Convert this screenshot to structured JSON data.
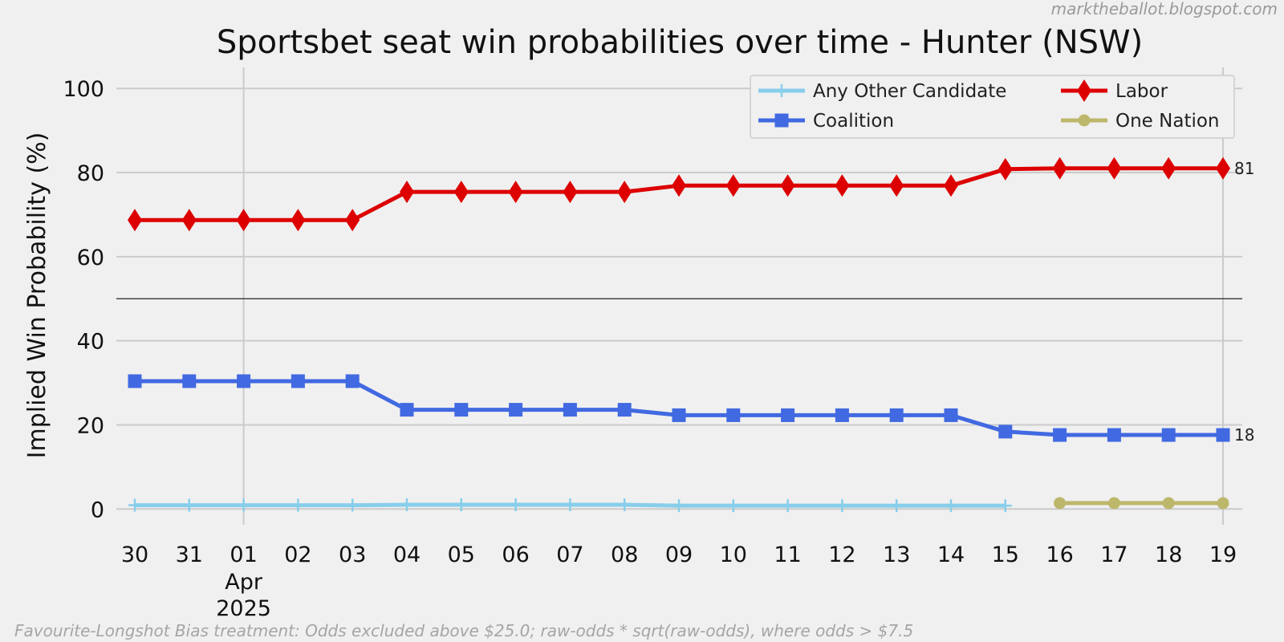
{
  "source_credit": "marktheballot.blogspot.com",
  "footnote": "Favourite-Longshot Bias treatment: Odds excluded above $25.0; raw-odds * sqrt(raw-odds), where odds > $7.5",
  "chart_data": {
    "type": "line",
    "title": "Sportsbet seat win probabilities over time - Hunter (NSW)",
    "ylabel": "Implied Win Probability (%)",
    "xlabel": "",
    "ylim": [
      -3,
      105
    ],
    "yticks": [
      0,
      20,
      40,
      60,
      80,
      100
    ],
    "reference_line": 50,
    "x": [
      "2025-03-30",
      "2025-03-31",
      "2025-04-01",
      "2025-04-02",
      "2025-04-03",
      "2025-04-04",
      "2025-04-05",
      "2025-04-06",
      "2025-04-07",
      "2025-04-08",
      "2025-04-09",
      "2025-04-10",
      "2025-04-11",
      "2025-04-12",
      "2025-04-13",
      "2025-04-14",
      "2025-04-15",
      "2025-04-16",
      "2025-04-17",
      "2025-04-18",
      "2025-04-19"
    ],
    "xtick_labels": [
      "30",
      "31",
      "01",
      "02",
      "03",
      "04",
      "05",
      "06",
      "07",
      "08",
      "09",
      "10",
      "11",
      "12",
      "13",
      "14",
      "15",
      "16",
      "17",
      "18",
      "19"
    ],
    "xtick_sublabel": {
      "index": 2,
      "lines": [
        "Apr",
        "2025"
      ]
    },
    "vgrid_indices": [
      2,
      20
    ],
    "legend_position": "upper right",
    "series": [
      {
        "name": "Any Other Candidate",
        "color": "#87ceeb",
        "marker": "plus",
        "values": [
          0.9,
          0.9,
          0.9,
          0.9,
          0.9,
          1.0,
          1.0,
          1.0,
          1.0,
          1.0,
          0.8,
          0.8,
          0.8,
          0.8,
          0.8,
          0.8,
          0.8,
          null,
          null,
          null,
          null
        ]
      },
      {
        "name": "Coalition",
        "color": "#4169e1",
        "marker": "square",
        "values": [
          30.4,
          30.4,
          30.4,
          30.4,
          30.4,
          23.6,
          23.6,
          23.6,
          23.6,
          23.6,
          22.3,
          22.3,
          22.3,
          22.3,
          22.3,
          22.3,
          18.4,
          17.6,
          17.6,
          17.6,
          17.6
        ]
      },
      {
        "name": "Labor",
        "color": "#dd0000",
        "marker": "diamond",
        "values": [
          68.7,
          68.7,
          68.7,
          68.7,
          68.7,
          75.4,
          75.4,
          75.4,
          75.4,
          75.4,
          76.9,
          76.9,
          76.9,
          76.9,
          76.9,
          76.9,
          80.8,
          81.0,
          81.0,
          81.0,
          81.0
        ]
      },
      {
        "name": "One Nation",
        "color": "#bdb76b",
        "marker": "circle",
        "values": [
          null,
          null,
          null,
          null,
          null,
          null,
          null,
          null,
          null,
          null,
          null,
          null,
          null,
          null,
          null,
          null,
          null,
          1.4,
          1.4,
          1.4,
          1.4
        ]
      }
    ],
    "end_labels": [
      {
        "series": "Labor",
        "text": "81"
      },
      {
        "series": "Coalition",
        "text": "18"
      }
    ]
  }
}
